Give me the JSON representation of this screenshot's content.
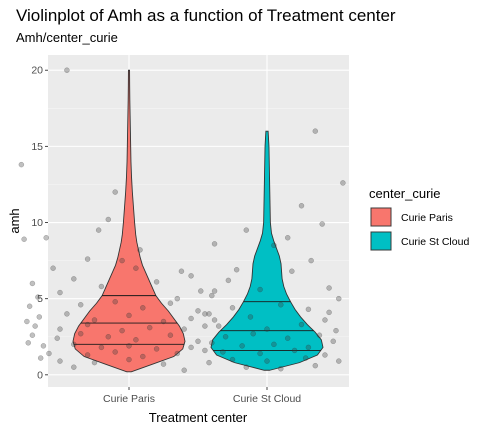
{
  "chart_data": {
    "type": "violin",
    "title": "Violinplot of Amh as a function of Treatment center",
    "subtitle": "Amh/center_curie",
    "xlabel": "Treatment center",
    "ylabel": "amh",
    "categories": [
      "Curie Paris",
      "Curie St Cloud"
    ],
    "ylim": [
      -0.8,
      21
    ],
    "yticks": [
      0,
      5,
      10,
      15,
      20
    ],
    "grid": true,
    "legend": {
      "title": "center_curie",
      "placement": "right",
      "entries": [
        {
          "label": "Curie Paris",
          "color": "#F8766D"
        },
        {
          "label": "Curie St Cloud",
          "color": "#00BFC4"
        }
      ]
    },
    "violins": [
      {
        "name": "Curie Paris",
        "color": "#F8766D",
        "min": 0.2,
        "max": 20,
        "quantiles": [
          2.0,
          3.4,
          5.2
        ],
        "profile": [
          [
            0.2,
            0.04
          ],
          [
            0.7,
            0.42
          ],
          [
            1.2,
            0.8
          ],
          [
            1.7,
            0.96
          ],
          [
            2.2,
            1.0
          ],
          [
            2.7,
            0.97
          ],
          [
            3.2,
            0.9
          ],
          [
            3.7,
            0.8
          ],
          [
            4.2,
            0.7
          ],
          [
            4.7,
            0.58
          ],
          [
            5.2,
            0.48
          ],
          [
            5.7,
            0.42
          ],
          [
            6.2,
            0.36
          ],
          [
            6.7,
            0.3
          ],
          [
            7.2,
            0.24
          ],
          [
            7.7,
            0.2
          ],
          [
            8.2,
            0.17
          ],
          [
            8.7,
            0.14
          ],
          [
            9.2,
            0.12
          ],
          [
            10,
            0.1
          ],
          [
            11,
            0.08
          ],
          [
            12,
            0.06
          ],
          [
            13,
            0.045
          ],
          [
            14,
            0.035
          ],
          [
            15,
            0.03
          ],
          [
            16,
            0.025
          ],
          [
            17,
            0.02
          ],
          [
            18,
            0.015
          ],
          [
            19,
            0.012
          ],
          [
            20,
            0.01
          ]
        ],
        "points": [
          [
            0.55,
            20.0
          ],
          [
            0.22,
            13.8
          ],
          [
            0.24,
            8.9
          ],
          [
            0.4,
            9.0
          ],
          [
            0.9,
            12.0
          ],
          [
            1.62,
            8.6
          ],
          [
            0.7,
            7.6
          ],
          [
            0.95,
            7.5
          ],
          [
            1.05,
            7.0
          ],
          [
            1.45,
            6.5
          ],
          [
            0.3,
            6.0
          ],
          [
            0.6,
            6.3
          ],
          [
            1.2,
            6.1
          ],
          [
            1.52,
            5.5
          ],
          [
            1.6,
            5.2
          ],
          [
            0.5,
            5.4
          ],
          [
            0.8,
            5.8
          ],
          [
            1.35,
            5.0
          ],
          [
            0.28,
            4.5
          ],
          [
            0.65,
            4.6
          ],
          [
            0.9,
            4.8
          ],
          [
            1.1,
            4.4
          ],
          [
            1.3,
            4.7
          ],
          [
            1.5,
            4.2
          ],
          [
            0.35,
            3.8
          ],
          [
            0.55,
            4.0
          ],
          [
            0.75,
            3.6
          ],
          [
            1.0,
            3.9
          ],
          [
            1.25,
            3.5
          ],
          [
            1.45,
            3.7
          ],
          [
            0.32,
            3.2
          ],
          [
            0.5,
            3.0
          ],
          [
            0.7,
            3.3
          ],
          [
            0.95,
            2.9
          ],
          [
            1.15,
            3.1
          ],
          [
            1.4,
            3.0
          ],
          [
            0.3,
            2.6
          ],
          [
            0.48,
            2.4
          ],
          [
            0.65,
            2.7
          ],
          [
            0.85,
            2.5
          ],
          [
            1.05,
            2.3
          ],
          [
            1.3,
            2.6
          ],
          [
            1.5,
            2.2
          ],
          [
            0.38,
            1.9
          ],
          [
            0.6,
            2.0
          ],
          [
            0.8,
            1.8
          ],
          [
            1.0,
            1.9
          ],
          [
            1.2,
            1.7
          ],
          [
            1.45,
            1.8
          ],
          [
            0.42,
            1.4
          ],
          [
            0.7,
            1.3
          ],
          [
            0.9,
            1.5
          ],
          [
            1.1,
            1.2
          ],
          [
            1.35,
            1.4
          ],
          [
            0.5,
            0.9
          ],
          [
            0.75,
            0.8
          ],
          [
            1.0,
            1.0
          ],
          [
            1.25,
            0.7
          ],
          [
            0.6,
            0.5
          ],
          [
            1.4,
            0.3
          ],
          [
            0.85,
            10.2
          ],
          [
            0.78,
            9.5
          ],
          [
            1.08,
            8.2
          ],
          [
            0.45,
            7.0
          ],
          [
            1.38,
            6.8
          ],
          [
            0.34,
            5.1
          ],
          [
            1.58,
            4.0
          ],
          [
            0.26,
            3.5
          ],
          [
            1.55,
            3.2
          ],
          [
            0.27,
            2.1
          ],
          [
            1.55,
            1.6
          ],
          [
            0.36,
            1.1
          ]
        ]
      },
      {
        "name": "Curie St Cloud",
        "color": "#00BFC4",
        "min": 0.3,
        "max": 16,
        "quantiles": [
          1.6,
          2.9,
          4.8
        ],
        "profile": [
          [
            0.3,
            0.05
          ],
          [
            0.8,
            0.58
          ],
          [
            1.3,
            0.9
          ],
          [
            1.8,
            1.0
          ],
          [
            2.3,
            0.97
          ],
          [
            2.8,
            0.86
          ],
          [
            3.3,
            0.72
          ],
          [
            3.8,
            0.6
          ],
          [
            4.3,
            0.5
          ],
          [
            4.8,
            0.42
          ],
          [
            5.3,
            0.35
          ],
          [
            5.8,
            0.3
          ],
          [
            6.3,
            0.27
          ],
          [
            6.8,
            0.26
          ],
          [
            7.3,
            0.25
          ],
          [
            7.8,
            0.22
          ],
          [
            8.3,
            0.17
          ],
          [
            8.8,
            0.12
          ],
          [
            9.3,
            0.08
          ],
          [
            10,
            0.06
          ],
          [
            11,
            0.055
          ],
          [
            12,
            0.05
          ],
          [
            13,
            0.045
          ],
          [
            14,
            0.04
          ],
          [
            15,
            0.035
          ],
          [
            16,
            0.02
          ]
        ],
        "points": [
          [
            2.35,
            16.0
          ],
          [
            2.55,
            12.6
          ],
          [
            2.25,
            11.1
          ],
          [
            2.4,
            9.9
          ],
          [
            1.85,
            9.5
          ],
          [
            2.15,
            9.0
          ],
          [
            2.05,
            8.5
          ],
          [
            2.32,
            7.5
          ],
          [
            1.78,
            6.9
          ],
          [
            2.18,
            6.8
          ],
          [
            2.45,
            5.7
          ],
          [
            1.62,
            5.5
          ],
          [
            1.95,
            5.6
          ],
          [
            2.52,
            5.0
          ],
          [
            1.75,
            4.4
          ],
          [
            2.1,
            4.6
          ],
          [
            2.3,
            4.3
          ],
          [
            1.55,
            4.0
          ],
          [
            1.88,
            3.8
          ],
          [
            2.42,
            3.6
          ],
          [
            1.65,
            3.2
          ],
          [
            2.0,
            3.0
          ],
          [
            2.25,
            3.3
          ],
          [
            2.5,
            2.9
          ],
          [
            1.7,
            2.5
          ],
          [
            1.9,
            2.7
          ],
          [
            2.15,
            2.4
          ],
          [
            2.38,
            2.6
          ],
          [
            1.6,
            2.1
          ],
          [
            1.82,
            1.9
          ],
          [
            2.05,
            2.0
          ],
          [
            2.3,
            1.8
          ],
          [
            2.48,
            2.2
          ],
          [
            1.68,
            1.5
          ],
          [
            1.95,
            1.4
          ],
          [
            2.2,
            1.6
          ],
          [
            2.42,
            1.3
          ],
          [
            1.75,
            1.0
          ],
          [
            2.0,
            0.9
          ],
          [
            2.28,
            1.1
          ],
          [
            1.58,
            0.8
          ],
          [
            2.35,
            0.6
          ],
          [
            1.85,
            0.5
          ],
          [
            2.1,
            0.4
          ],
          [
            2.52,
            0.9
          ],
          [
            1.62,
            3.6
          ],
          [
            2.45,
            4.1
          ],
          [
            1.72,
            6.2
          ]
        ]
      }
    ]
  }
}
